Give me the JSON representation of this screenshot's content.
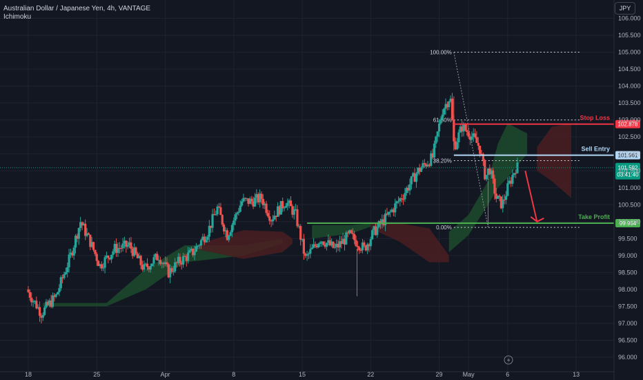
{
  "header": {
    "title": "Australian Dollar / Japanese Yen, 4h, VANTAGE",
    "indicator": "Ichimoku",
    "currency_button": "JPY"
  },
  "colors": {
    "background": "#131722",
    "grid": "#1f2330",
    "text": "#b2b5be",
    "up": "#26a69a",
    "down": "#ef5350",
    "kumo_bull": "#1d4a2c",
    "kumo_bear": "#4a1f22",
    "stop": "#f23645",
    "entry": "#b2d7f5",
    "profit": "#4caf50",
    "current": "#089981"
  },
  "chart_data": {
    "type": "candlestick",
    "symbol": "AUDJPY",
    "timeframe": "4h",
    "broker": "VANTAGE",
    "ylim": [
      96.0,
      106.0
    ],
    "yticks": [
      "96.000",
      "96.500",
      "97.000",
      "97.500",
      "98.000",
      "98.500",
      "99.000",
      "99.500",
      "100.000",
      "100.500",
      "101.000",
      "101.500",
      "102.000",
      "102.500",
      "103.000",
      "103.500",
      "104.000",
      "104.500",
      "105.000",
      "105.500",
      "106.000"
    ],
    "xticks": [
      {
        "label": "18",
        "day": 0
      },
      {
        "label": "25",
        "day": 7
      },
      {
        "label": "Apr",
        "day": 14
      },
      {
        "label": "8",
        "day": 21
      },
      {
        "label": "15",
        "day": 28
      },
      {
        "label": "22",
        "day": 35
      },
      {
        "label": "29",
        "day": 42
      },
      {
        "label": "May",
        "day": 45
      },
      {
        "label": "6",
        "day": 49
      },
      {
        "label": "13",
        "day": 56
      }
    ],
    "price_path": [
      [
        0,
        98.0
      ],
      [
        1.5,
        97.3
      ],
      [
        3,
        97.8
      ],
      [
        4.5,
        99.0
      ],
      [
        5.5,
        100.0
      ],
      [
        6.5,
        99.4
      ],
      [
        7.5,
        98.7
      ],
      [
        9,
        99.2
      ],
      [
        10.5,
        99.3
      ],
      [
        12,
        98.6
      ],
      [
        13.5,
        99.0
      ],
      [
        14.5,
        98.5
      ],
      [
        15.5,
        98.8
      ],
      [
        17,
        99.1
      ],
      [
        18.5,
        99.7
      ],
      [
        19.5,
        100.4
      ],
      [
        20.5,
        99.6
      ],
      [
        22,
        100.6
      ],
      [
        23,
        100.6
      ],
      [
        24,
        100.7
      ],
      [
        25,
        100.1
      ],
      [
        26.5,
        100.6
      ],
      [
        27.5,
        100.2
      ],
      [
        28.5,
        98.9
      ],
      [
        30,
        99.5
      ],
      [
        31.5,
        99.2
      ],
      [
        33,
        99.6
      ],
      [
        34.5,
        99.2
      ],
      [
        35.5,
        99.7
      ],
      [
        37,
        100.2
      ],
      [
        38.5,
        100.8
      ],
      [
        40,
        101.5
      ],
      [
        41.5,
        101.9
      ],
      [
        42.5,
        103.3
      ],
      [
        43.3,
        103.7
      ],
      [
        43.7,
        102.2
      ],
      [
        44.5,
        102.8
      ],
      [
        45.3,
        102.6
      ],
      [
        46.3,
        102.2
      ],
      [
        46.9,
        101.3
      ],
      [
        47.3,
        101.6
      ],
      [
        48.0,
        100.7
      ],
      [
        48.6,
        100.5
      ],
      [
        49.3,
        101.1
      ],
      [
        50.0,
        101.6
      ]
    ],
    "ichimoku": {
      "kumo": [
        {
          "color": "bull",
          "upper": [
            [
              1.5,
              97.6
            ],
            [
              8,
              97.6
            ],
            [
              12,
              98.6
            ],
            [
              16,
              99.3
            ],
            [
              22,
              99.3
            ],
            [
              26,
              99.5
            ]
          ],
          "lower": [
            [
              1.5,
              97.5
            ],
            [
              8,
              97.5
            ],
            [
              12,
              98.0
            ],
            [
              16,
              98.8
            ],
            [
              22,
              99.0
            ],
            [
              26,
              99.35
            ]
          ]
        },
        {
          "color": "bear",
          "upper": [
            [
              17,
              99.3
            ],
            [
              22,
              99.75
            ],
            [
              26,
              99.7
            ],
            [
              27,
              99.5
            ]
          ],
          "lower": [
            [
              17,
              99.2
            ],
            [
              22,
              98.9
            ],
            [
              26,
              99.1
            ],
            [
              27,
              99.35
            ]
          ]
        },
        {
          "color": "bull",
          "upper": [
            [
              29,
              99.9
            ],
            [
              33,
              99.9
            ],
            [
              35,
              99.95
            ]
          ],
          "lower": [
            [
              29,
              99.5
            ],
            [
              33,
              99.65
            ],
            [
              35,
              99.85
            ]
          ]
        },
        {
          "color": "bear",
          "upper": [
            [
              35,
              99.95
            ],
            [
              38,
              99.95
            ],
            [
              41,
              99.8
            ],
            [
              43,
              99.0
            ]
          ],
          "lower": [
            [
              35,
              99.8
            ],
            [
              38,
              99.4
            ],
            [
              41,
              98.8
            ],
            [
              43,
              98.8
            ]
          ]
        },
        {
          "color": "bull",
          "upper": [
            [
              43,
              99.7
            ],
            [
              45,
              100.2
            ],
            [
              47,
              101.2
            ],
            [
              48,
              102.3
            ],
            [
              49,
              102.9
            ],
            [
              51,
              102.6
            ]
          ],
          "lower": [
            [
              43,
              99.1
            ],
            [
              45,
              99.6
            ],
            [
              47,
              100.5
            ],
            [
              48,
              101.0
            ],
            [
              49,
              101.3
            ],
            [
              51,
              102.0
            ]
          ]
        },
        {
          "color": "bear",
          "upper": [
            [
              52,
              102.2
            ],
            [
              53.5,
              102.8
            ],
            [
              55.5,
              102.9
            ]
          ],
          "lower": [
            [
              52,
              101.5
            ],
            [
              53.5,
              101.2
            ],
            [
              55.5,
              100.7
            ]
          ]
        }
      ]
    },
    "fibonacci": [
      {
        "label": "100.00%",
        "price": 105.0
      },
      {
        "label": "61.80%",
        "price": 103.0
      },
      {
        "label": "38.20%",
        "price": 101.8
      },
      {
        "label": "0.00%",
        "price": 99.83
      }
    ],
    "trade_levels": [
      {
        "name": "Stop Loss",
        "price": 102.878,
        "price_label": "102.878",
        "color": "stop"
      },
      {
        "name": "Sell Entry",
        "price": 101.961,
        "price_label": "101.961",
        "color": "entry"
      },
      {
        "name": "Take Profit",
        "price": 99.954,
        "price_label": "99.954",
        "color": "profit"
      }
    ],
    "current_price": {
      "price": 101.592,
      "price_label": "101.592",
      "countdown": "03:41:40"
    },
    "projection": {
      "from": [
        50.8,
        101.5
      ],
      "to": [
        52.0,
        100.0
      ]
    }
  }
}
